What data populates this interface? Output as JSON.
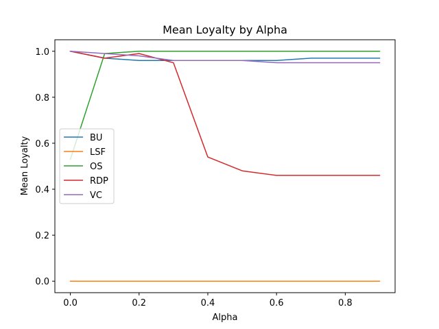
{
  "chart_data": {
    "type": "line",
    "title": "Mean Loyalty by Alpha",
    "xlabel": "Alpha",
    "ylabel": "Mean Loyalty",
    "xlim": [
      -0.045,
      0.945
    ],
    "ylim": [
      -0.05,
      1.05
    ],
    "xticks": [
      0.0,
      0.2,
      0.4,
      0.6,
      0.8
    ],
    "xtick_labels": [
      "0.0",
      "0.2",
      "0.4",
      "0.6",
      "0.8"
    ],
    "yticks": [
      0.0,
      0.2,
      0.4,
      0.6,
      0.8,
      1.0
    ],
    "ytick_labels": [
      "0.0",
      "0.2",
      "0.4",
      "0.6",
      "0.8",
      "1.0"
    ],
    "grid": false,
    "legend_position": "center-left",
    "x": [
      0.0,
      0.1,
      0.2,
      0.3,
      0.4,
      0.5,
      0.6,
      0.7,
      0.8,
      0.9
    ],
    "series": [
      {
        "name": "BU",
        "color": "#1f77b4",
        "values": [
          1.0,
          0.97,
          0.96,
          0.96,
          0.96,
          0.96,
          0.96,
          0.97,
          0.97,
          0.97
        ]
      },
      {
        "name": "LSF",
        "color": "#ff7f0e",
        "values": [
          0.0,
          0.0,
          0.0,
          0.0,
          0.0,
          0.0,
          0.0,
          0.0,
          0.0,
          0.0
        ]
      },
      {
        "name": "OS",
        "color": "#2ca02c",
        "values": [
          0.53,
          0.99,
          1.0,
          1.0,
          1.0,
          1.0,
          1.0,
          1.0,
          1.0,
          1.0
        ]
      },
      {
        "name": "RDP",
        "color": "#d62728",
        "values": [
          1.0,
          0.97,
          0.99,
          0.95,
          0.54,
          0.48,
          0.46,
          0.46,
          0.46,
          0.46
        ]
      },
      {
        "name": "VC",
        "color": "#9467bd",
        "values": [
          1.0,
          0.99,
          0.98,
          0.96,
          0.96,
          0.96,
          0.95,
          0.95,
          0.95,
          0.95
        ]
      }
    ]
  }
}
